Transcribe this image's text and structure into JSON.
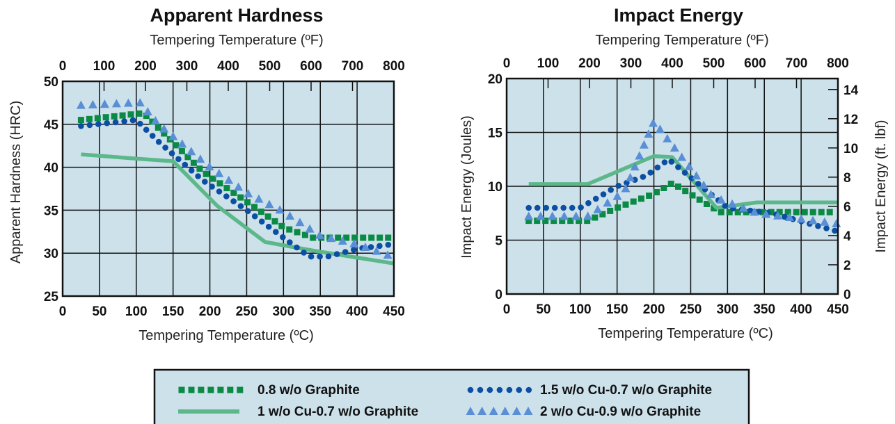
{
  "colors": {
    "plot_bg": "#cce1ea",
    "frame": "#111111",
    "series_0_8_graphite": "#0b8a45",
    "series_1cu": "#5cb88a",
    "series_1_5cu": "#0b4ea2",
    "series_2cu": "#5a8fd6"
  },
  "legend": {
    "items": [
      {
        "label": "0.8 w/o Graphite",
        "style": "green-squares"
      },
      {
        "label": "1 w/o Cu-0.7 w/o Graphite",
        "style": "light-green-line"
      },
      {
        "label": "1.5 w/o Cu-0.7 w/o Graphite",
        "style": "blue-dots"
      },
      {
        "label": "2 w/o Cu-0.9 w/o Graphite",
        "style": "light-blue-triangles"
      }
    ]
  },
  "chart_data": [
    {
      "type": "line",
      "title": "Apparent Hardness",
      "xlabel": "Tempering Temperature (ºC)",
      "x2label": "Tempering Temperature (ºF)",
      "ylabel": "Apparent Hardness (HRC)",
      "xlim": [
        0,
        450
      ],
      "ylim": [
        25,
        50
      ],
      "x2lim": [
        0,
        800
      ],
      "xticks": [
        0,
        50,
        100,
        150,
        200,
        250,
        300,
        350,
        400,
        450
      ],
      "yticks": [
        25,
        30,
        35,
        40,
        45,
        50
      ],
      "x2ticks": [
        0,
        100,
        200,
        300,
        400,
        500,
        600,
        700,
        800
      ],
      "grid": true,
      "series": [
        {
          "name": "0.8 w/o Graphite",
          "style": "green-squares",
          "points": [
            [
              25,
              45.5
            ],
            [
              110,
              46.3
            ],
            [
              190,
              39.5
            ],
            [
              250,
              36.0
            ],
            [
              300,
              33.0
            ],
            [
              340,
              31.8
            ],
            [
              450,
              31.8
            ]
          ]
        },
        {
          "name": "1 w/o Cu-0.7 w/o Graphite",
          "style": "light-green-line",
          "points": [
            [
              25,
              41.5
            ],
            [
              100,
              41.0
            ],
            [
              150,
              40.7
            ],
            [
              210,
              35.5
            ],
            [
              275,
              31.3
            ],
            [
              340,
              30.3
            ],
            [
              450,
              28.8
            ]
          ]
        },
        {
          "name": "1.5 w/o Cu-0.7 w/o Graphite",
          "style": "blue-dots",
          "points": [
            [
              25,
              44.8
            ],
            [
              100,
              45.5
            ],
            [
              130,
              43.0
            ],
            [
              190,
              38.5
            ],
            [
              250,
              35.0
            ],
            [
              300,
              31.8
            ],
            [
              335,
              29.6
            ],
            [
              360,
              29.6
            ],
            [
              400,
              30.5
            ],
            [
              445,
              31.0
            ]
          ]
        },
        {
          "name": "2 w/o Cu-0.9 w/o Graphite",
          "style": "light-blue-triangles",
          "points": [
            [
              25,
              47.2
            ],
            [
              105,
              47.5
            ],
            [
              130,
              45.0
            ],
            [
              200,
              40.0
            ],
            [
              250,
              37.0
            ],
            [
              300,
              34.8
            ],
            [
              350,
              32.0
            ],
            [
              400,
              31.0
            ],
            [
              450,
              29.5
            ]
          ]
        }
      ]
    },
    {
      "type": "line",
      "title": "Impact Energy",
      "xlabel": "Tempering Temperature (ºC)",
      "x2label": "Tempering Temperature (ºF)",
      "ylabel": "Impact Energy (Joules)",
      "y2label": "Impact Energy (ft. lbf)",
      "xlim": [
        0,
        450
      ],
      "ylim": [
        0,
        20
      ],
      "x2lim": [
        0,
        800
      ],
      "y2lim": [
        0,
        14.75
      ],
      "xticks": [
        0,
        50,
        100,
        150,
        200,
        250,
        300,
        350,
        400,
        450
      ],
      "yticks": [
        0,
        5,
        10,
        15,
        20
      ],
      "x2ticks": [
        0,
        100,
        200,
        300,
        400,
        500,
        600,
        700,
        800
      ],
      "y2ticks": [
        0,
        2,
        4,
        6,
        8,
        10,
        12,
        14
      ],
      "grid": true,
      "series": [
        {
          "name": "0.8 w/o Graphite",
          "style": "green-squares",
          "points": [
            [
              30,
              6.8
            ],
            [
              110,
              6.8
            ],
            [
              150,
              8.0
            ],
            [
              200,
              9.3
            ],
            [
              225,
              10.3
            ],
            [
              290,
              7.6
            ],
            [
              450,
              7.6
            ]
          ]
        },
        {
          "name": "1 w/o Cu-0.7 w/o Graphite",
          "style": "light-green-line",
          "points": [
            [
              30,
              10.2
            ],
            [
              110,
              10.2
            ],
            [
              200,
              12.8
            ],
            [
              225,
              12.7
            ],
            [
              285,
              8.0
            ],
            [
              340,
              8.5
            ],
            [
              450,
              8.5
            ]
          ]
        },
        {
          "name": "1.5 w/o Cu-0.7 w/o Graphite",
          "style": "blue-dots",
          "points": [
            [
              30,
              8.0
            ],
            [
              100,
              8.0
            ],
            [
              150,
              10.0
            ],
            [
              190,
              11.0
            ],
            [
              220,
              12.5
            ],
            [
              300,
              8.0
            ],
            [
              360,
              7.5
            ],
            [
              450,
              5.8
            ]
          ]
        },
        {
          "name": "2 w/o Cu-0.9 w/o Graphite",
          "style": "light-blue-triangles",
          "points": [
            [
              30,
              7.2
            ],
            [
              110,
              7.2
            ],
            [
              160,
              9.5
            ],
            [
              200,
              16.0
            ],
            [
              240,
              12.5
            ],
            [
              280,
              9.0
            ],
            [
              340,
              7.5
            ],
            [
              450,
              6.5
            ]
          ]
        }
      ]
    }
  ]
}
